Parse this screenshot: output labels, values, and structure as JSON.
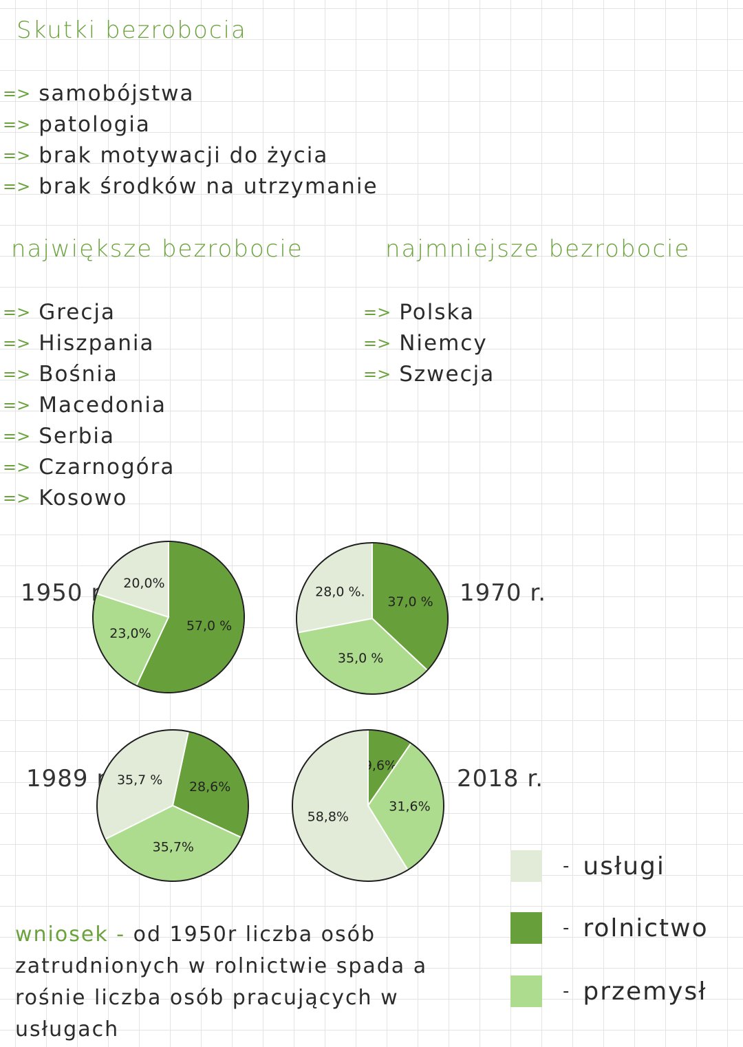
{
  "title": "Skutki bezrobocia",
  "effects": [
    "samobójstwa",
    "patologia",
    "brak motywacji do życia",
    "brak środków na utrzymanie"
  ],
  "highest": {
    "heading": "największe bezrobocie",
    "items": [
      "Grecja",
      "Hiszpania",
      "Bośnia",
      "Macedonia",
      "Serbia",
      "Czarnogóra",
      "Kosowo"
    ]
  },
  "lowest": {
    "heading": "najmniejsze bezrobocie",
    "items": [
      "Polska",
      "Niemcy",
      "Szwecja"
    ]
  },
  "legend": [
    {
      "label": "usługi",
      "color": "#e1ebd8"
    },
    {
      "label": "rolnictwo",
      "color": "#67a03a"
    },
    {
      "label": "przemysł",
      "color": "#aedc8e"
    }
  ],
  "chart_data": [
    {
      "type": "pie",
      "title": "1950 r.",
      "labels": [
        "rolnictwo",
        "przemysł",
        "usługi"
      ],
      "values": [
        57.0,
        23.0,
        20.0
      ],
      "value_labels": [
        "57,0 %",
        "23,0%",
        "20,0%"
      ]
    },
    {
      "type": "pie",
      "title": "1970 r.",
      "labels": [
        "rolnictwo",
        "przemysł",
        "usługi"
      ],
      "values": [
        37.0,
        35.0,
        28.0
      ],
      "value_labels": [
        "37,0 %",
        "35,0 %",
        "28,0 %."
      ]
    },
    {
      "type": "pie",
      "title": "1989 r.",
      "labels": [
        "rolnictwo",
        "przemysł",
        "usługi"
      ],
      "values": [
        28.6,
        35.7,
        35.7
      ],
      "value_labels": [
        "28,6%",
        "35,7%",
        "35,7 %"
      ]
    },
    {
      "type": "pie",
      "title": "2018 r.",
      "labels": [
        "rolnictwo",
        "przemysł",
        "usługi"
      ],
      "values": [
        9.6,
        31.6,
        58.8
      ],
      "value_labels": [
        "9,6%",
        "31,6%",
        "58,8%"
      ]
    }
  ],
  "conclusion": {
    "lead": "wniosek -",
    "text": "od 1950r liczba osób zatrudnionych w rolnictwie spada a rośnie liczba osób pracujących w usługach"
  }
}
